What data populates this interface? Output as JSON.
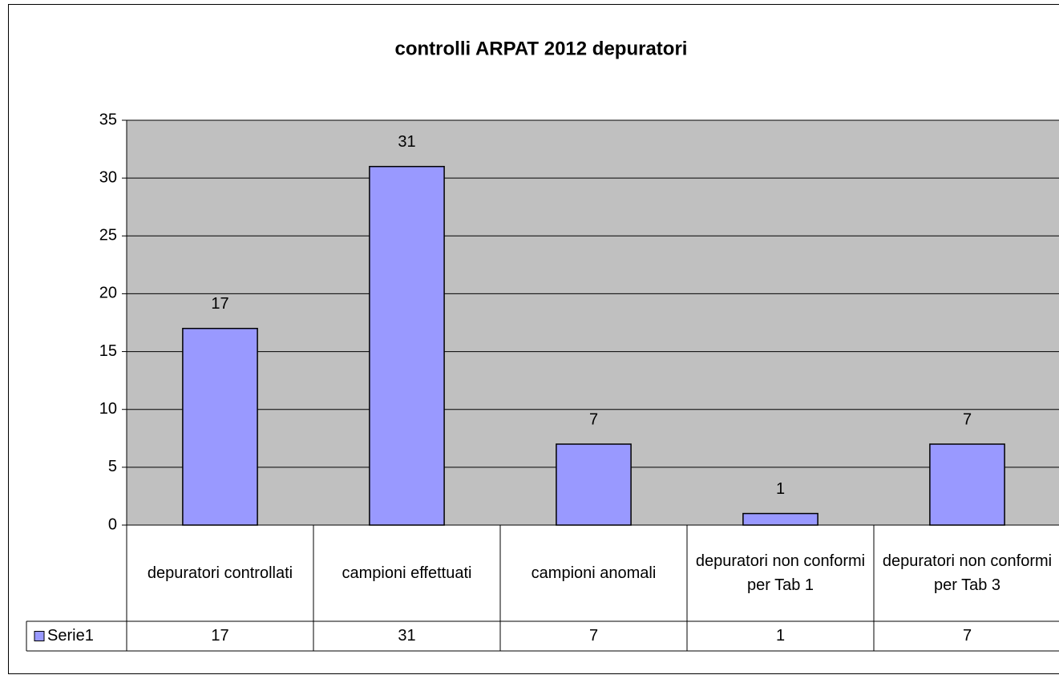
{
  "chart_data": {
    "type": "bar",
    "title": "controlli ARPAT 2012 depuratori",
    "categories": [
      "depuratori controllati",
      "campioni effettuati",
      "campioni anomali",
      "depuratori non conformi per Tab 1",
      "depuratori non conformi per Tab 3"
    ],
    "series": [
      {
        "name": "Serie1",
        "color": "#9999ff",
        "values": [
          17,
          31,
          7,
          1,
          7
        ]
      }
    ],
    "ylim": [
      0,
      35
    ],
    "yticks": [
      0,
      5,
      10,
      15,
      20,
      25,
      30,
      35
    ],
    "grid": true
  }
}
